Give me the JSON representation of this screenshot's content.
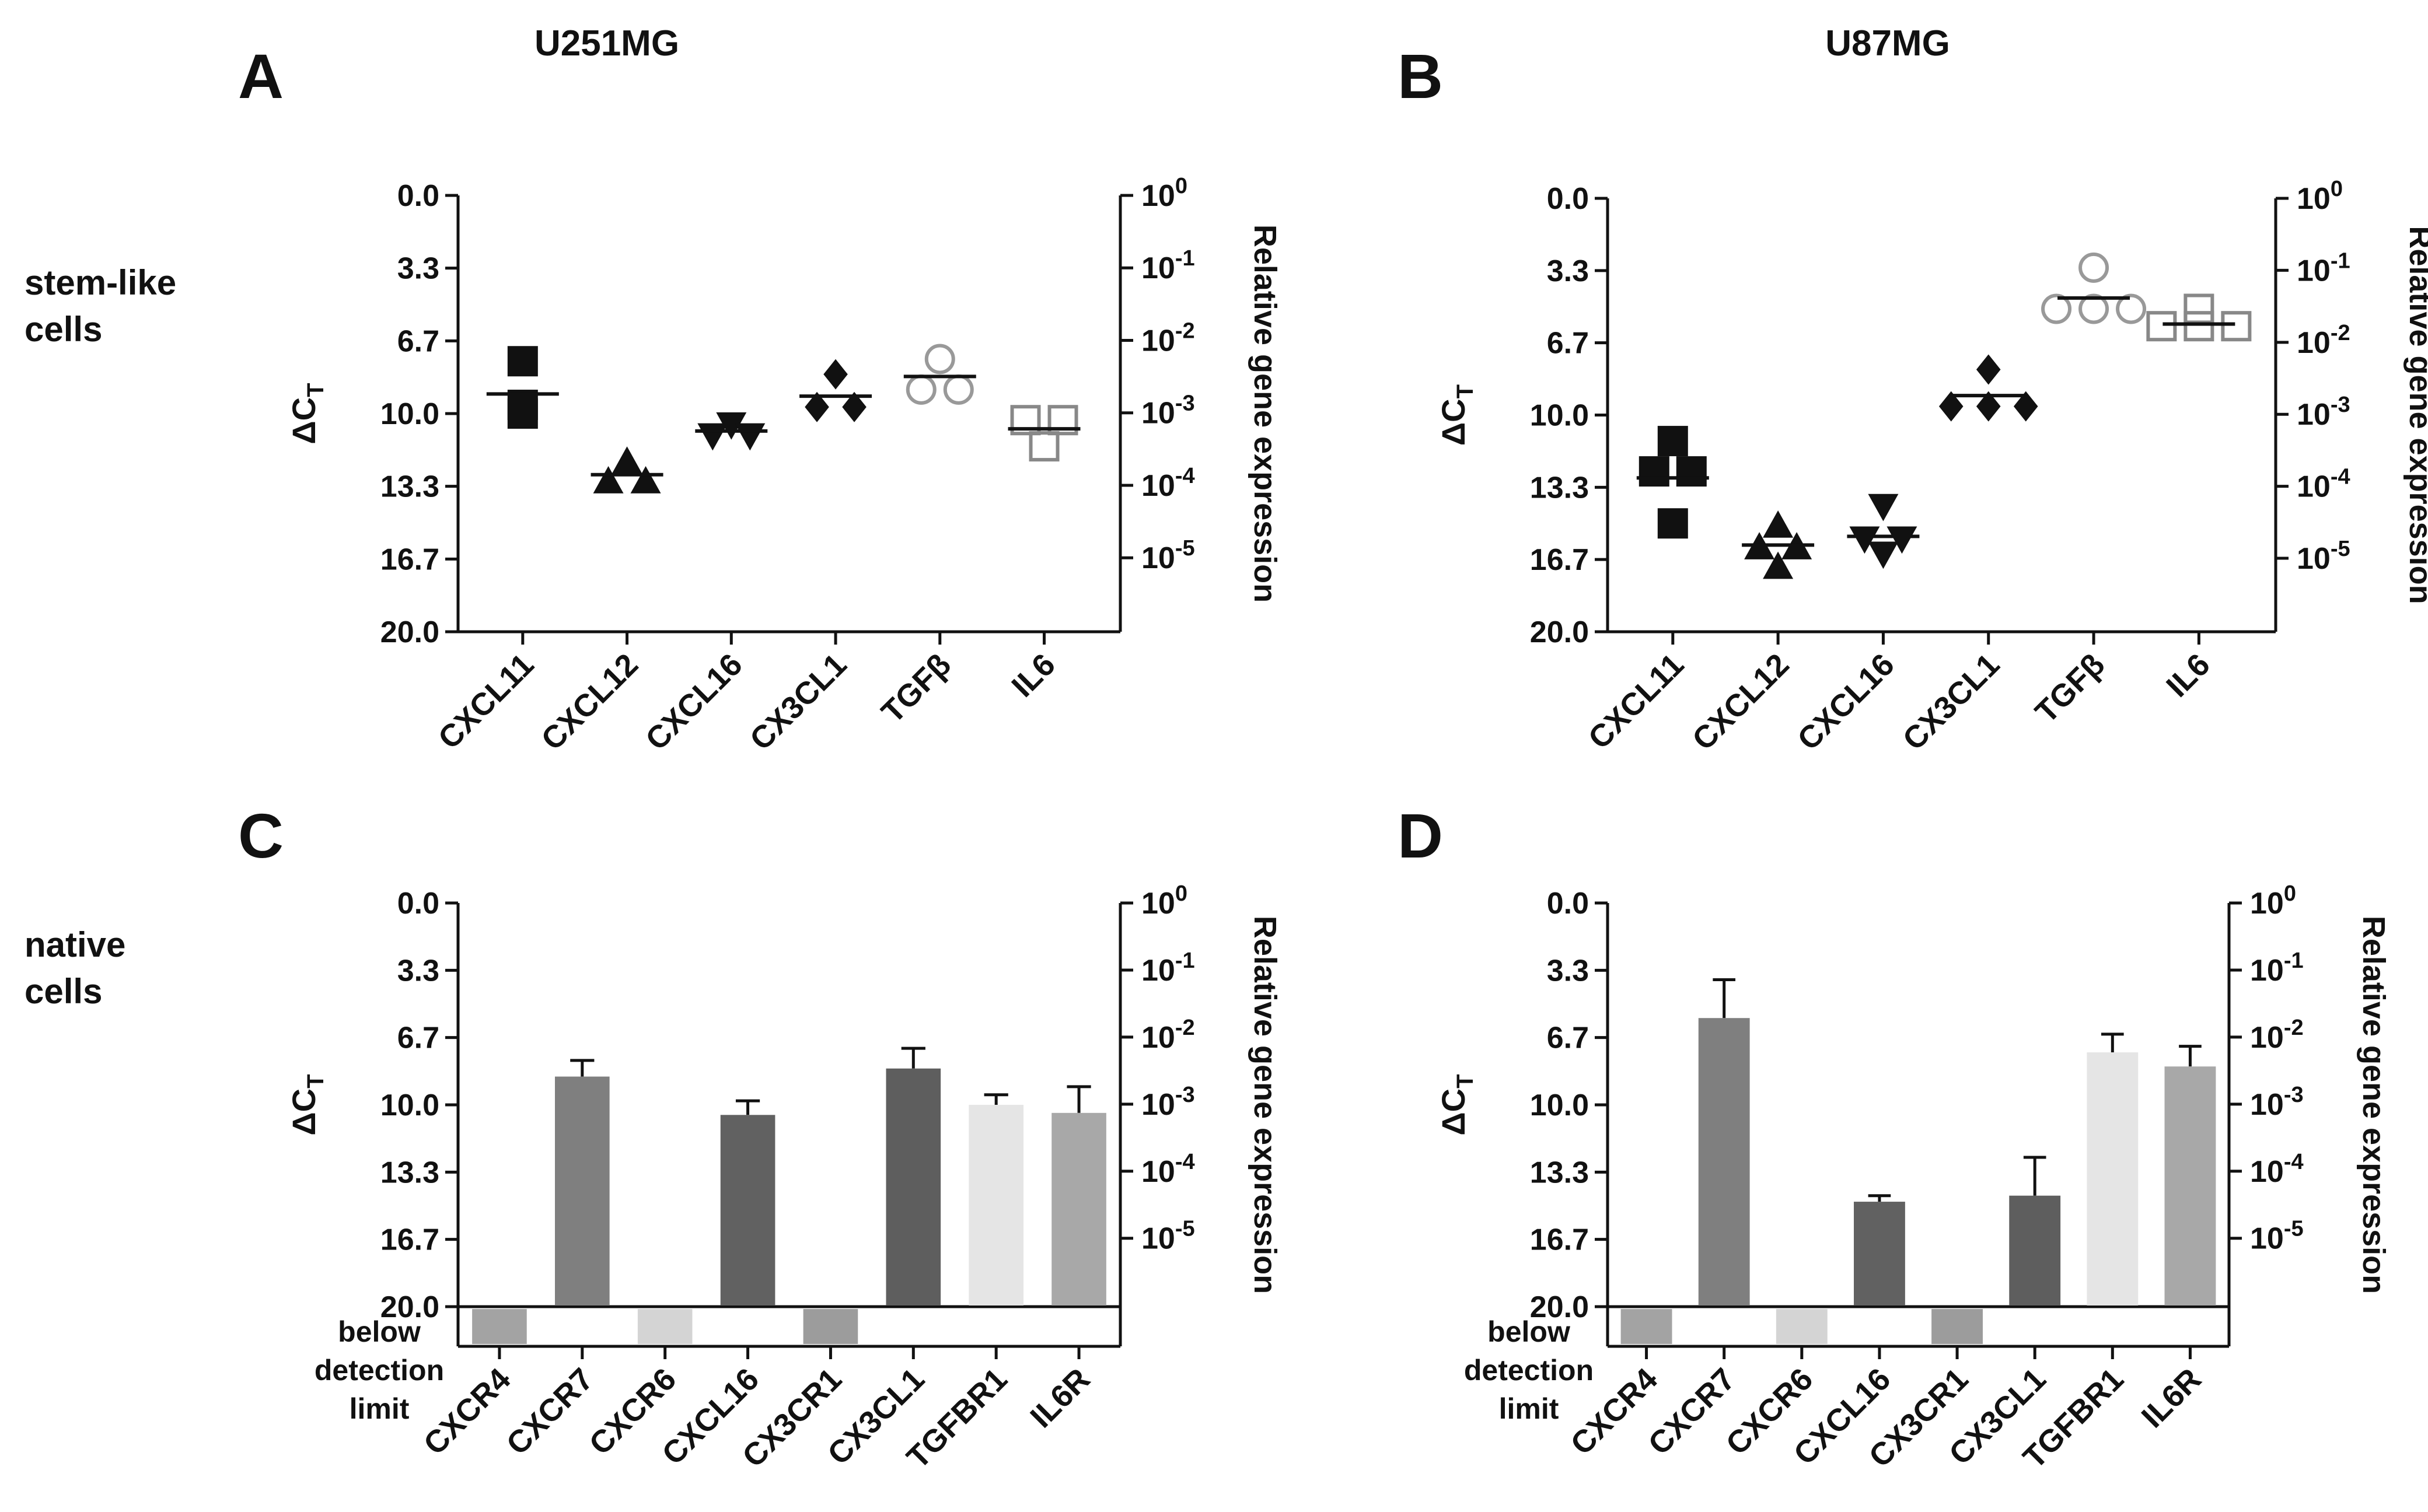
{
  "figure": {
    "columns": [
      "U251MG",
      "U87MG"
    ],
    "row_labels": [
      {
        "line1": "stem-like",
        "line2": "cells"
      },
      {
        "line1": "native",
        "line2": "cells"
      }
    ],
    "y_left_label": "ΔC",
    "y_left_label_sub": "T",
    "y_right_label": "Relative gene expression",
    "left_ticks": [
      "0.0",
      "3.3",
      "6.7",
      "10.0",
      "13.3",
      "16.7",
      "20.0"
    ],
    "right_ticks": [
      {
        "base": "10",
        "exp": "0"
      },
      {
        "base": "10",
        "exp": "-1"
      },
      {
        "base": "10",
        "exp": "-2"
      },
      {
        "base": "10",
        "exp": "-3"
      },
      {
        "base": "10",
        "exp": "-4"
      },
      {
        "base": "10",
        "exp": "-5"
      }
    ],
    "below_label": [
      "below",
      "detection",
      "limit"
    ]
  },
  "chart_data": [
    {
      "panel": "A",
      "cell_line": "U251MG",
      "type": "scatter",
      "ylim": [
        0,
        20
      ],
      "y_inverted": true,
      "categories": [
        "CXCL11",
        "CXCL12",
        "CXCL16",
        "CX3CL1",
        "TGFβ",
        "IL6"
      ],
      "series": [
        {
          "name": "CXCL11",
          "marker": "square",
          "filled": true,
          "color": "#111111",
          "points": [
            7.6,
            9.6,
            10.0
          ],
          "mean": 9.1
        },
        {
          "name": "CXCL12",
          "marker": "triangle",
          "filled": true,
          "color": "#111111",
          "points": [
            12.2,
            13.1,
            13.1
          ],
          "mean": 12.8
        },
        {
          "name": "CXCL16",
          "marker": "triangle-down",
          "filled": true,
          "color": "#111111",
          "points": [
            10.5,
            11.0,
            11.0
          ],
          "mean": 10.8
        },
        {
          "name": "CX3CL1",
          "marker": "diamond",
          "filled": true,
          "color": "#111111",
          "points": [
            8.2,
            9.7,
            9.7
          ],
          "mean": 9.2
        },
        {
          "name": "TGFβ",
          "marker": "circle",
          "filled": false,
          "color": "#999999",
          "points": [
            7.5,
            8.9,
            8.9
          ],
          "mean": 8.3
        },
        {
          "name": "IL6",
          "marker": "square",
          "filled": false,
          "color": "#888888",
          "points": [
            10.3,
            10.3,
            11.5
          ],
          "mean": 10.7
        }
      ]
    },
    {
      "panel": "B",
      "cell_line": "U87MG",
      "type": "scatter",
      "ylim": [
        0,
        20
      ],
      "y_inverted": true,
      "categories": [
        "CXCL11",
        "CXCL12",
        "CXCL16",
        "CX3CL1",
        "TGFβ",
        "IL6"
      ],
      "series": [
        {
          "name": "CXCL11",
          "marker": "square",
          "filled": true,
          "color": "#111111",
          "points": [
            11.2,
            12.6,
            12.6,
            15.0
          ],
          "mean": 12.9
        },
        {
          "name": "CXCL12",
          "marker": "triangle",
          "filled": true,
          "color": "#111111",
          "points": [
            15.1,
            16.1,
            16.1,
            17.0
          ],
          "mean": 16.0
        },
        {
          "name": "CXCL16",
          "marker": "triangle-down",
          "filled": true,
          "color": "#111111",
          "points": [
            14.2,
            15.7,
            15.7,
            16.4
          ],
          "mean": 15.6
        },
        {
          "name": "CX3CL1",
          "marker": "diamond",
          "filled": true,
          "color": "#111111",
          "points": [
            7.9,
            9.6,
            9.6,
            9.6
          ],
          "mean": 9.1
        },
        {
          "name": "TGFβ",
          "marker": "circle",
          "filled": false,
          "color": "#999999",
          "points": [
            3.2,
            5.1,
            5.1,
            5.1
          ],
          "mean": 4.6
        },
        {
          "name": "IL6",
          "marker": "square",
          "filled": false,
          "color": "#888888",
          "points": [
            5.1,
            5.9,
            5.9,
            5.9
          ],
          "mean": 5.8
        }
      ]
    },
    {
      "panel": "C",
      "cell_line": "U251MG",
      "type": "bar",
      "ylim": [
        0,
        20
      ],
      "y_inverted": true,
      "categories": [
        "CXCR4",
        "CXCR7",
        "CXCR6",
        "CXCL16",
        "CX3CR1",
        "CX3CL1",
        "TGFBR1",
        "IL6R"
      ],
      "values": [
        null,
        8.6,
        null,
        10.5,
        null,
        8.2,
        10.0,
        10.4
      ],
      "errors": [
        null,
        0.8,
        null,
        0.7,
        null,
        1.0,
        0.5,
        1.3
      ],
      "below_detection_limit": [
        true,
        false,
        true,
        false,
        true,
        false,
        false,
        false
      ],
      "colors": [
        "#a3a3a3",
        "#7f7f7f",
        "#d4d4d4",
        "#616161",
        "#9c9c9c",
        "#5e5e5e",
        "#e5e5e5",
        "#a8a8a8"
      ]
    },
    {
      "panel": "D",
      "cell_line": "U87MG",
      "type": "bar",
      "ylim": [
        0,
        20
      ],
      "y_inverted": true,
      "categories": [
        "CXCR4",
        "CXCR7",
        "CXCR6",
        "CXCL16",
        "CX3CR1",
        "CX3CL1",
        "TGFBR1",
        "IL6R"
      ],
      "values": [
        null,
        5.7,
        null,
        14.8,
        null,
        14.5,
        7.4,
        8.1
      ],
      "errors": [
        null,
        1.9,
        null,
        0.3,
        null,
        1.9,
        0.9,
        1.0
      ],
      "below_detection_limit": [
        true,
        false,
        true,
        false,
        true,
        false,
        false,
        false
      ],
      "colors": [
        "#a3a3a3",
        "#7f7f7f",
        "#d4d4d4",
        "#616161",
        "#9c9c9c",
        "#5e5e5e",
        "#e5e5e5",
        "#a8a8a8"
      ]
    }
  ]
}
